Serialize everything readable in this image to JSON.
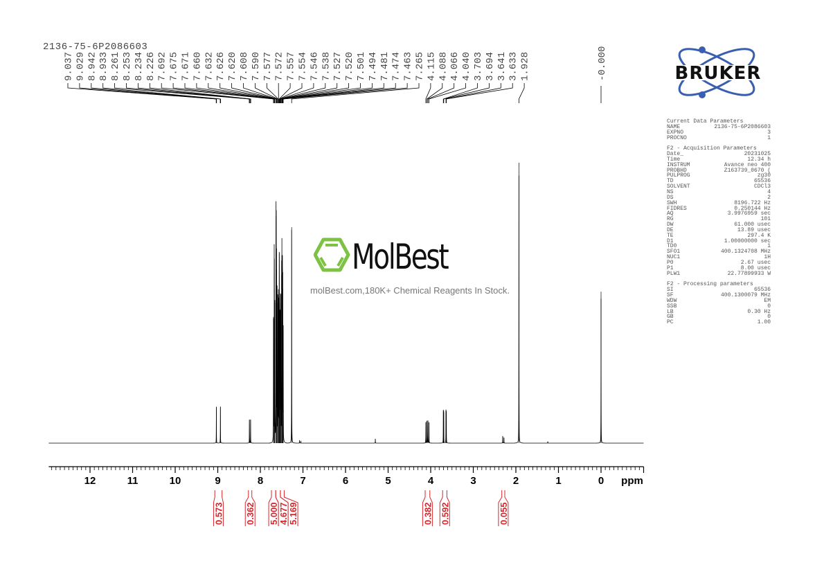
{
  "sample_name": "2136-75-6P2086603",
  "logo": {
    "text": "BRUKER",
    "color": "#3a5fb0"
  },
  "watermark": {
    "name": "MolBest",
    "tagline": "molBest.com,180K+ Chemical Reagents In Stock.",
    "color": "#7dc242"
  },
  "parameters": {
    "current": {
      "title": "Current Data Parameters",
      "rows": [
        [
          "NAME",
          "2136-75-6P2086603"
        ],
        [
          "EXPNO",
          "3"
        ],
        [
          "PROCNO",
          "1"
        ]
      ]
    },
    "acquisition": {
      "title": "F2 - Acquisition Parameters",
      "rows": [
        [
          "Date_",
          "20231025"
        ],
        [
          "Time",
          "12.34 h"
        ],
        [
          "INSTRUM",
          "Avance neo 400"
        ],
        [
          "PROBHD",
          "Z163739_0670 ("
        ],
        [
          "PULPROG",
          "zg30"
        ],
        [
          "TD",
          "65536"
        ],
        [
          "SOLVENT",
          "CDCl3"
        ],
        [
          "NS",
          "4"
        ],
        [
          "DS",
          "2"
        ],
        [
          "SWH",
          "8196.722 Hz"
        ],
        [
          "FIDRES",
          "0.250144 Hz"
        ],
        [
          "AQ",
          "3.9976959 sec"
        ],
        [
          "RG",
          "101"
        ],
        [
          "DW",
          "61.000 usec"
        ],
        [
          "DE",
          "13.89 usec"
        ],
        [
          "TE",
          "297.4 K"
        ],
        [
          "D1",
          "1.00000000 sec"
        ],
        [
          "TD0",
          "1"
        ],
        [
          "SFO1",
          "400.1324708 MHz"
        ],
        [
          "NUC1",
          "1H"
        ],
        [
          "P0",
          "2.67 usec"
        ],
        [
          "P1",
          "8.00 usec"
        ],
        [
          "PLW1",
          "22.77899933 W"
        ]
      ]
    },
    "processing": {
      "title": "F2 - Processing parameters",
      "rows": [
        [
          "SI",
          "65536"
        ],
        [
          "SF",
          "400.1300079 MHz"
        ],
        [
          "WDW",
          "EM"
        ],
        [
          "SSB",
          "0"
        ],
        [
          "LB",
          "0.30 Hz"
        ],
        [
          "GB",
          "0"
        ],
        [
          "PC",
          "1.00"
        ]
      ]
    }
  },
  "chart_data": {
    "type": "line",
    "xlabel": "ppm",
    "xlim": [
      12.97,
      -1.0
    ],
    "x_reversed": true,
    "x_ticks": [
      12,
      11,
      10,
      9,
      8,
      7,
      6,
      5,
      4,
      3,
      2,
      1,
      0
    ],
    "x_tick_labels": [
      "12",
      "11",
      "10",
      "9",
      "8",
      "7",
      "6",
      "5",
      "4",
      "3",
      "2",
      "1",
      "0"
    ],
    "grid": false,
    "spectrum_color": "#000000",
    "peaks": [
      {
        "ppm": 9.033,
        "intensity": 13
      },
      {
        "ppm": 8.938,
        "intensity": 13
      },
      {
        "ppm": 8.257,
        "intensity": 8.4
      },
      {
        "ppm": 8.23,
        "intensity": 8.4
      },
      {
        "ppm": 7.692,
        "intensity": 45
      },
      {
        "ppm": 7.675,
        "intensity": 60
      },
      {
        "ppm": 7.671,
        "intensity": 55
      },
      {
        "ppm": 7.66,
        "intensity": 50
      },
      {
        "ppm": 7.632,
        "intensity": 81
      },
      {
        "ppm": 7.626,
        "intensity": 70
      },
      {
        "ppm": 7.62,
        "intensity": 62
      },
      {
        "ppm": 7.608,
        "intensity": 55
      },
      {
        "ppm": 7.59,
        "intensity": 50
      },
      {
        "ppm": 7.577,
        "intensity": 48
      },
      {
        "ppm": 7.572,
        "intensity": 45
      },
      {
        "ppm": 7.557,
        "intensity": 52
      },
      {
        "ppm": 7.554,
        "intensity": 50
      },
      {
        "ppm": 7.546,
        "intensity": 40
      },
      {
        "ppm": 7.538,
        "intensity": 42
      },
      {
        "ppm": 7.527,
        "intensity": 48
      },
      {
        "ppm": 7.52,
        "intensity": 50
      },
      {
        "ppm": 7.501,
        "intensity": 60
      },
      {
        "ppm": 7.494,
        "intensity": 67
      },
      {
        "ppm": 7.481,
        "intensity": 62
      },
      {
        "ppm": 7.474,
        "intensity": 55
      },
      {
        "ppm": 7.463,
        "intensity": 40
      },
      {
        "ppm": 7.265,
        "intensity": 77
      },
      {
        "ppm": 7.08,
        "intensity": 1
      },
      {
        "ppm": 7.05,
        "intensity": 0.8
      },
      {
        "ppm": 5.3,
        "intensity": 1.5
      },
      {
        "ppm": 4.115,
        "intensity": 7.5
      },
      {
        "ppm": 4.088,
        "intensity": 8
      },
      {
        "ppm": 4.066,
        "intensity": 8
      },
      {
        "ppm": 4.04,
        "intensity": 7.5
      },
      {
        "ppm": 3.703,
        "intensity": 11.6
      },
      {
        "ppm": 3.694,
        "intensity": 11
      },
      {
        "ppm": 3.641,
        "intensity": 11.6
      },
      {
        "ppm": 3.633,
        "intensity": 11
      },
      {
        "ppm": 2.31,
        "intensity": 2.5
      },
      {
        "ppm": 2.28,
        "intensity": 2
      },
      {
        "ppm": 1.928,
        "intensity": 100
      },
      {
        "ppm": 1.25,
        "intensity": 0.6
      },
      {
        "ppm": 0.0,
        "intensity": 54
      }
    ],
    "peak_labels": [
      "9.037",
      "9.029",
      "8.942",
      "8.933",
      "8.261",
      "8.253",
      "8.234",
      "8.226",
      "7.692",
      "7.675",
      "7.671",
      "7.660",
      "7.632",
      "7.626",
      "7.620",
      "7.608",
      "7.590",
      "7.577",
      "7.572",
      "7.557",
      "7.554",
      "7.546",
      "7.538",
      "7.527",
      "7.520",
      "7.501",
      "7.494",
      "7.481",
      "7.474",
      "7.463",
      "7.265",
      "4.115",
      "4.088",
      "4.066",
      "4.040",
      "3.703",
      "3.694",
      "3.641",
      "3.633",
      "1.928"
    ],
    "reference_label": "-0.000",
    "integrals": [
      {
        "value": "0.573",
        "from": 9.07,
        "to": 8.9
      },
      {
        "value": "0.362",
        "from": 8.28,
        "to": 8.2
      },
      {
        "value": "5.000",
        "from": 7.74,
        "to": 7.64
      },
      {
        "value": "4.677",
        "from": 7.64,
        "to": 7.53
      },
      {
        "value": "5.169",
        "from": 7.53,
        "to": 7.44
      },
      {
        "value": "0.382",
        "from": 4.13,
        "to": 4.02
      },
      {
        "value": "0.592",
        "from": 3.72,
        "to": 3.62
      },
      {
        "value": "0.055",
        "from": 2.33,
        "to": 2.26
      }
    ],
    "integral_color": "#d9262a"
  }
}
